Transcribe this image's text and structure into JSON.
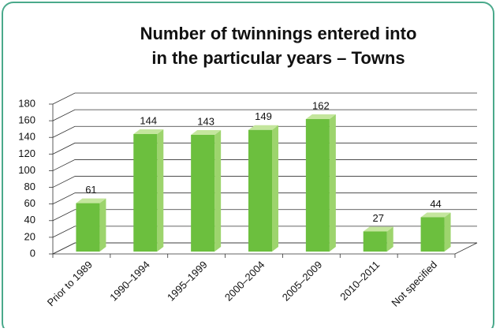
{
  "chart_data": {
    "type": "bar3d",
    "title": "Number of twinnings entered into",
    "subtitle": "in the particular years – Towns",
    "categories": [
      "Prior to 1989",
      "1990–1994",
      "1995–1999",
      "2000–2004",
      "2005–2009",
      "2010–2011",
      "Not specified"
    ],
    "values": [
      61,
      144,
      143,
      149,
      162,
      27,
      44
    ],
    "color": "#6cbf3e",
    "ylim": [
      0,
      180
    ],
    "yticks": [
      0,
      20,
      40,
      60,
      80,
      100,
      120,
      140,
      160,
      180
    ],
    "grid": true
  }
}
